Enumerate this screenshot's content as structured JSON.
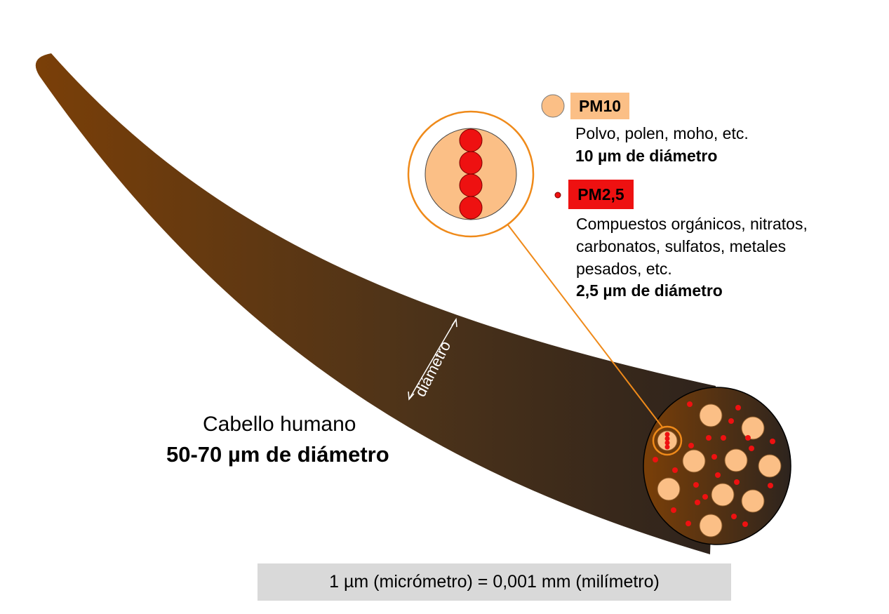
{
  "pm10": {
    "label": "PM10",
    "desc": "Polvo, polen, moho, etc.",
    "size": "10 µm de diámetro",
    "color": "#fbbf86"
  },
  "pm25": {
    "label": "PM2,5",
    "desc_lines": [
      "Compuestos orgánicos, nitratos,",
      "carbonatos, sulfatos, metales",
      "pesados, etc."
    ],
    "size": "2,5 µm de diámetro",
    "color": "#ee1111"
  },
  "hair": {
    "name": "Cabello humano",
    "size": "50-70 µm de diámetro",
    "diameter_label": "diámetro",
    "colors": [
      "#7a3f08",
      "#2e231c"
    ]
  },
  "footer": "1 µm (micrómetro) = 0,001 mm (milímetro)",
  "accent_color": "#ef8a1a"
}
